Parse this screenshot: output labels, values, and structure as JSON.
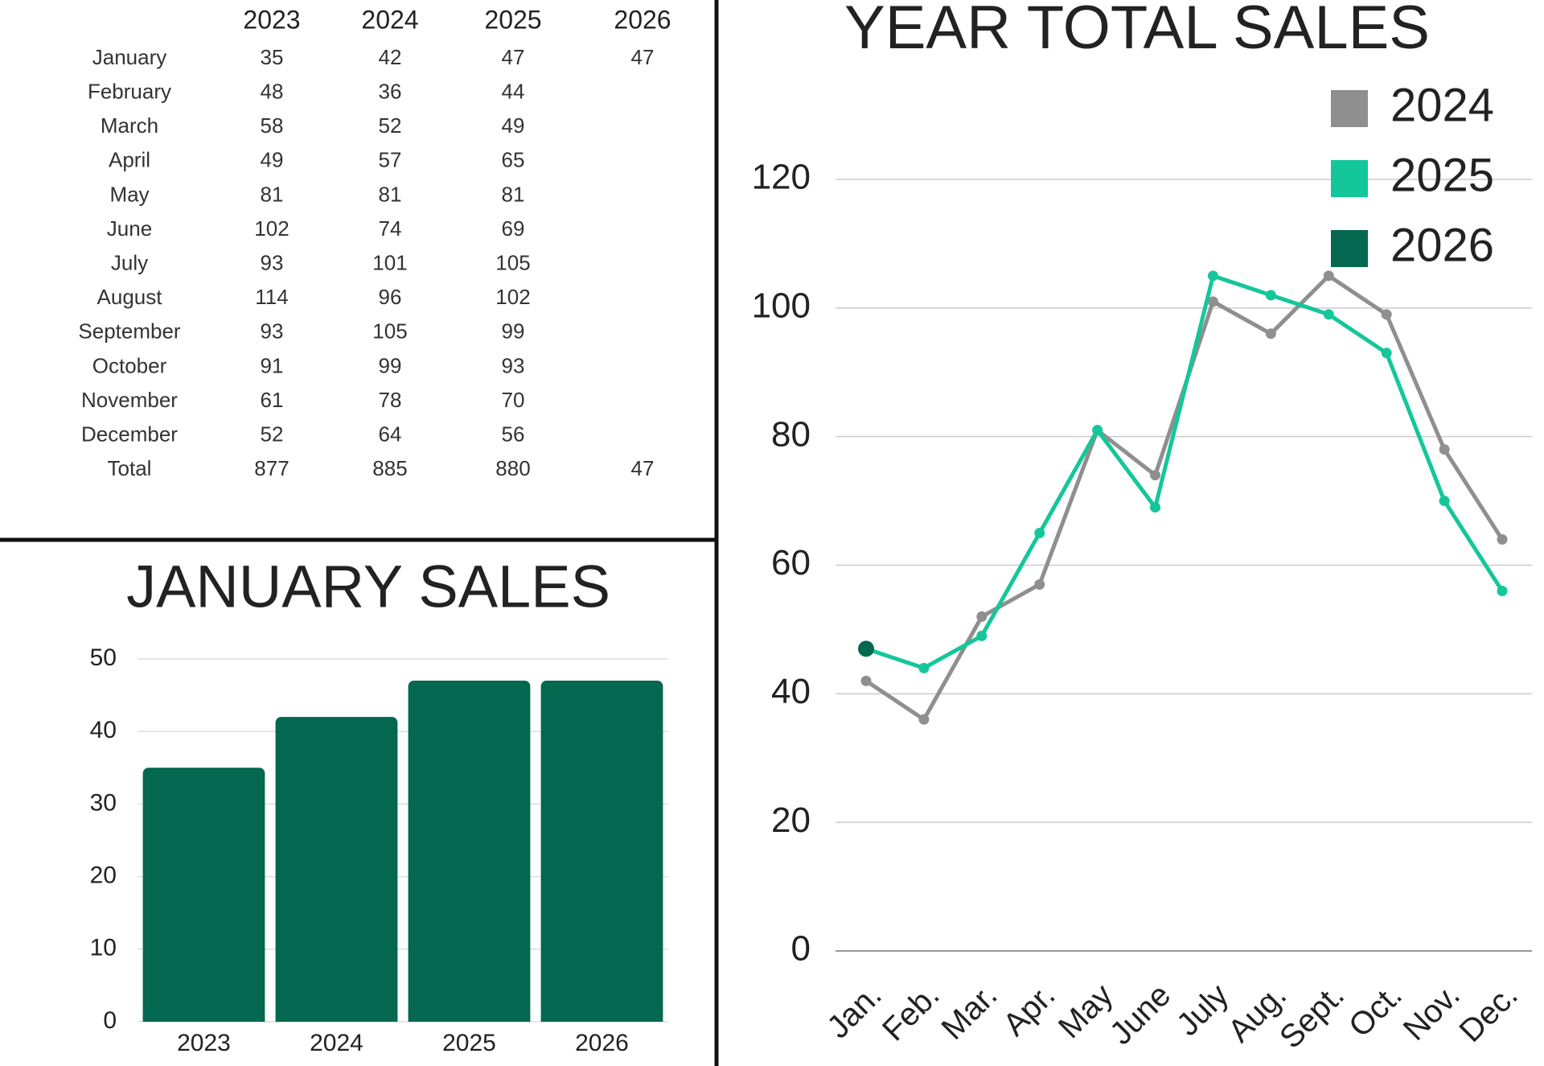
{
  "table": {
    "header": [
      "2023",
      "2024",
      "2025",
      "2026"
    ],
    "rows": [
      [
        "January",
        35,
        42,
        47,
        47
      ],
      [
        "February",
        48,
        36,
        44
      ],
      [
        "March",
        58,
        52,
        49
      ],
      [
        "April",
        49,
        57,
        65
      ],
      [
        "May",
        81,
        81,
        81
      ],
      [
        "June",
        102,
        74,
        69
      ],
      [
        "July",
        93,
        101,
        105
      ],
      [
        "August",
        114,
        96,
        102
      ],
      [
        "September",
        93,
        105,
        99
      ],
      [
        "October",
        91,
        99,
        93
      ],
      [
        "November",
        61,
        78,
        70
      ],
      [
        "December",
        52,
        64,
        56
      ],
      [
        "Total",
        877,
        885,
        880,
        47
      ]
    ]
  },
  "chart_data": [
    {
      "type": "bar",
      "title": "JANUARY SALES",
      "categories": [
        "2023",
        "2024",
        "2025",
        "2026"
      ],
      "values": [
        35,
        42,
        47,
        47
      ],
      "color": "#03684f",
      "ylim": [
        0,
        50
      ],
      "yticks": [
        0,
        10,
        20,
        30,
        40,
        50
      ],
      "grid": true
    },
    {
      "type": "line",
      "title": "YEAR TOTAL SALES",
      "categories": [
        "Jan.",
        "Feb.",
        "Mar.",
        "Apr.",
        "May",
        "June",
        "July",
        "Aug.",
        "Sept.",
        "Oct.",
        "Nov.",
        "Dec."
      ],
      "series": [
        {
          "name": "2024",
          "color": "#8f8f8f",
          "values": [
            42,
            36,
            52,
            57,
            81,
            74,
            101,
            96,
            105,
            99,
            78,
            64
          ]
        },
        {
          "name": "2025",
          "color": "#14c79a",
          "values": [
            47,
            44,
            49,
            65,
            81,
            69,
            105,
            102,
            99,
            93,
            70,
            56
          ]
        },
        {
          "name": "2026",
          "color": "#03684f",
          "values": [
            47,
            null,
            null,
            null,
            null,
            null,
            null,
            null,
            null,
            null,
            null,
            null
          ]
        }
      ],
      "ylim": [
        0,
        120
      ],
      "yticks": [
        0,
        20,
        40,
        60,
        80,
        100,
        120
      ],
      "grid": true,
      "legend": "top-right"
    }
  ]
}
